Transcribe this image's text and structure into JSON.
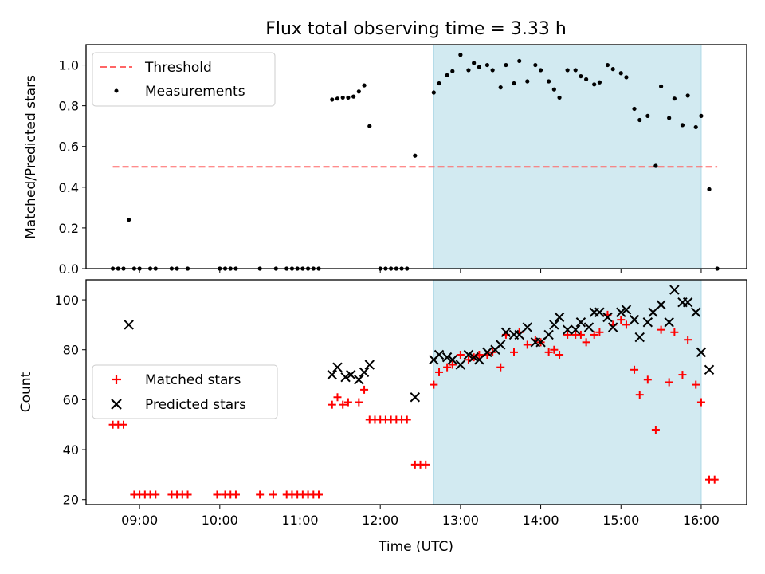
{
  "chart_data": [
    {
      "type": "scatter",
      "title": "Flux total observing time = 3.33 h",
      "xlabel": "",
      "ylabel": "Matched/Predicted stars",
      "ylim": [
        0,
        1.1
      ],
      "xlim": [
        "08:20",
        "16:34"
      ],
      "yticks": [
        0.0,
        0.2,
        0.4,
        0.6,
        0.8,
        1.0
      ],
      "ytick_labels": [
        "0.0",
        "0.2",
        "0.4",
        "0.6",
        "0.8",
        "1.0"
      ],
      "shaded_span": [
        "12:40",
        "16:00"
      ],
      "legend_position": "upper left",
      "threshold": {
        "name": "Threshold",
        "value": 0.5,
        "x_range": [
          "08:40",
          "16:12"
        ],
        "color": "#ff6666",
        "style": "dashed"
      },
      "series": [
        {
          "name": "Measurements",
          "color": "#000000",
          "marker": "dot",
          "points": [
            [
              "08:40",
              0.0
            ],
            [
              "08:44",
              0.0
            ],
            [
              "08:48",
              0.0
            ],
            [
              "08:52",
              0.24
            ],
            [
              "08:56",
              0.0
            ],
            [
              "09:00",
              0.0
            ],
            [
              "09:08",
              0.0
            ],
            [
              "09:12",
              0.0
            ],
            [
              "09:24",
              0.0
            ],
            [
              "09:28",
              0.0
            ],
            [
              "09:36",
              0.0
            ],
            [
              "10:00",
              0.0
            ],
            [
              "10:04",
              0.0
            ],
            [
              "10:08",
              0.0
            ],
            [
              "10:12",
              0.0
            ],
            [
              "10:30",
              0.0
            ],
            [
              "10:42",
              0.0
            ],
            [
              "10:50",
              0.0
            ],
            [
              "10:54",
              0.0
            ],
            [
              "10:58",
              0.0
            ],
            [
              "11:02",
              0.0
            ],
            [
              "11:06",
              0.0
            ],
            [
              "11:10",
              0.0
            ],
            [
              "11:14",
              0.0
            ],
            [
              "11:24",
              0.83
            ],
            [
              "11:28",
              0.835
            ],
            [
              "11:32",
              0.84
            ],
            [
              "11:36",
              0.84
            ],
            [
              "11:40",
              0.845
            ],
            [
              "11:44",
              0.87
            ],
            [
              "11:48",
              0.9
            ],
            [
              "11:52",
              0.7
            ],
            [
              "12:00",
              0.0
            ],
            [
              "12:04",
              0.0
            ],
            [
              "12:08",
              0.0
            ],
            [
              "12:12",
              0.0
            ],
            [
              "12:16",
              0.0
            ],
            [
              "12:20",
              0.0
            ],
            [
              "12:26",
              0.555
            ],
            [
              "12:40",
              0.865
            ],
            [
              "12:44",
              0.91
            ],
            [
              "12:50",
              0.95
            ],
            [
              "12:54",
              0.97
            ],
            [
              "13:00",
              1.05
            ],
            [
              "13:06",
              0.975
            ],
            [
              "13:10",
              1.01
            ],
            [
              "13:14",
              0.99
            ],
            [
              "13:20",
              1.0
            ],
            [
              "13:24",
              0.975
            ],
            [
              "13:30",
              0.89
            ],
            [
              "13:34",
              1.0
            ],
            [
              "13:40",
              0.91
            ],
            [
              "13:44",
              1.02
            ],
            [
              "13:50",
              0.92
            ],
            [
              "13:56",
              1.0
            ],
            [
              "14:00",
              0.975
            ],
            [
              "14:06",
              0.92
            ],
            [
              "14:10",
              0.88
            ],
            [
              "14:14",
              0.84
            ],
            [
              "14:20",
              0.975
            ],
            [
              "14:26",
              0.975
            ],
            [
              "14:30",
              0.945
            ],
            [
              "14:34",
              0.93
            ],
            [
              "14:40",
              0.905
            ],
            [
              "14:44",
              0.915
            ],
            [
              "14:50",
              1.0
            ],
            [
              "14:54",
              0.98
            ],
            [
              "15:00",
              0.96
            ],
            [
              "15:04",
              0.94
            ],
            [
              "15:10",
              0.785
            ],
            [
              "15:14",
              0.73
            ],
            [
              "15:20",
              0.75
            ],
            [
              "15:26",
              0.505
            ],
            [
              "15:30",
              0.895
            ],
            [
              "15:36",
              0.74
            ],
            [
              "15:40",
              0.835
            ],
            [
              "15:46",
              0.705
            ],
            [
              "15:50",
              0.85
            ],
            [
              "15:56",
              0.695
            ],
            [
              "16:00",
              0.75
            ],
            [
              "16:06",
              0.39
            ],
            [
              "16:12",
              0.0
            ]
          ]
        }
      ]
    },
    {
      "type": "scatter",
      "title": "",
      "xlabel": "Time (UTC)",
      "ylabel": "Count",
      "ylim": [
        18,
        108
      ],
      "xlim": [
        "08:20",
        "16:34"
      ],
      "yticks": [
        20,
        40,
        60,
        80,
        100
      ],
      "ytick_labels": [
        "20",
        "40",
        "60",
        "80",
        "100"
      ],
      "xticks": [
        "09:00",
        "10:00",
        "11:00",
        "12:00",
        "13:00",
        "14:00",
        "15:00",
        "16:00"
      ],
      "xtick_labels": [
        "09:00",
        "10:00",
        "11:00",
        "12:00",
        "13:00",
        "14:00",
        "15:00",
        "16:00"
      ],
      "shaded_span": [
        "12:40",
        "16:00"
      ],
      "legend_position": "center left",
      "series": [
        {
          "name": "Matched stars",
          "color": "#ff0000",
          "marker": "plus",
          "points": [
            [
              "08:40",
              50
            ],
            [
              "08:44",
              50
            ],
            [
              "08:48",
              50
            ],
            [
              "08:56",
              22
            ],
            [
              "09:00",
              22
            ],
            [
              "09:04",
              22
            ],
            [
              "09:08",
              22
            ],
            [
              "09:12",
              22
            ],
            [
              "09:24",
              22
            ],
            [
              "09:28",
              22
            ],
            [
              "09:32",
              22
            ],
            [
              "09:36",
              22
            ],
            [
              "09:58",
              22
            ],
            [
              "10:04",
              22
            ],
            [
              "10:08",
              22
            ],
            [
              "10:12",
              22
            ],
            [
              "10:30",
              22
            ],
            [
              "10:40",
              22
            ],
            [
              "10:50",
              22
            ],
            [
              "10:54",
              22
            ],
            [
              "10:58",
              22
            ],
            [
              "11:02",
              22
            ],
            [
              "11:06",
              22
            ],
            [
              "11:10",
              22
            ],
            [
              "11:14",
              22
            ],
            [
              "11:24",
              58
            ],
            [
              "11:28",
              61
            ],
            [
              "11:32",
              58
            ],
            [
              "11:36",
              59
            ],
            [
              "11:44",
              59
            ],
            [
              "11:48",
              64
            ],
            [
              "11:52",
              52
            ],
            [
              "11:56",
              52
            ],
            [
              "12:00",
              52
            ],
            [
              "12:04",
              52
            ],
            [
              "12:08",
              52
            ],
            [
              "12:12",
              52
            ],
            [
              "12:16",
              52
            ],
            [
              "12:20",
              52
            ],
            [
              "12:26",
              34
            ],
            [
              "12:30",
              34
            ],
            [
              "12:34",
              34
            ],
            [
              "12:40",
              66
            ],
            [
              "12:44",
              71
            ],
            [
              "12:50",
              73
            ],
            [
              "12:54",
              74
            ],
            [
              "13:00",
              78
            ],
            [
              "13:06",
              76
            ],
            [
              "13:10",
              77
            ],
            [
              "13:14",
              78
            ],
            [
              "13:20",
              78
            ],
            [
              "13:24",
              79
            ],
            [
              "13:30",
              73
            ],
            [
              "13:34",
              86
            ],
            [
              "13:40",
              79
            ],
            [
              "13:44",
              87
            ],
            [
              "13:50",
              82
            ],
            [
              "13:56",
              84
            ],
            [
              "14:00",
              83
            ],
            [
              "14:06",
              79
            ],
            [
              "14:10",
              80
            ],
            [
              "14:14",
              78
            ],
            [
              "14:20",
              86
            ],
            [
              "14:26",
              86
            ],
            [
              "14:30",
              86
            ],
            [
              "14:34",
              83
            ],
            [
              "14:40",
              86
            ],
            [
              "14:44",
              87
            ],
            [
              "14:50",
              94
            ],
            [
              "14:54",
              90
            ],
            [
              "15:00",
              92
            ],
            [
              "15:04",
              90
            ],
            [
              "15:10",
              72
            ],
            [
              "15:14",
              62
            ],
            [
              "15:20",
              68
            ],
            [
              "15:26",
              48
            ],
            [
              "15:30",
              88
            ],
            [
              "15:36",
              67
            ],
            [
              "15:40",
              87
            ],
            [
              "15:46",
              70
            ],
            [
              "15:50",
              84
            ],
            [
              "15:56",
              66
            ],
            [
              "16:00",
              59
            ],
            [
              "16:06",
              28
            ],
            [
              "16:10",
              28
            ]
          ]
        },
        {
          "name": "Predicted stars",
          "color": "#000000",
          "marker": "x",
          "points": [
            [
              "08:52",
              90
            ],
            [
              "11:24",
              70
            ],
            [
              "11:28",
              73
            ],
            [
              "11:34",
              69
            ],
            [
              "11:38",
              70
            ],
            [
              "11:44",
              68
            ],
            [
              "11:48",
              71
            ],
            [
              "11:52",
              74
            ],
            [
              "12:26",
              61
            ],
            [
              "12:40",
              76
            ],
            [
              "12:44",
              78
            ],
            [
              "12:50",
              77
            ],
            [
              "12:54",
              76
            ],
            [
              "13:00",
              74
            ],
            [
              "13:06",
              78
            ],
            [
              "13:10",
              77
            ],
            [
              "13:14",
              76
            ],
            [
              "13:20",
              79
            ],
            [
              "13:26",
              80
            ],
            [
              "13:30",
              82
            ],
            [
              "13:34",
              87
            ],
            [
              "13:40",
              86
            ],
            [
              "13:44",
              86
            ],
            [
              "13:50",
              89
            ],
            [
              "13:56",
              83
            ],
            [
              "14:00",
              83
            ],
            [
              "14:06",
              86
            ],
            [
              "14:10",
              90
            ],
            [
              "14:14",
              93
            ],
            [
              "14:20",
              88
            ],
            [
              "14:26",
              88
            ],
            [
              "14:30",
              91
            ],
            [
              "14:36",
              89
            ],
            [
              "14:40",
              95
            ],
            [
              "14:44",
              95
            ],
            [
              "14:50",
              93
            ],
            [
              "14:54",
              89
            ],
            [
              "15:00",
              95
            ],
            [
              "15:04",
              96
            ],
            [
              "15:10",
              92
            ],
            [
              "15:14",
              85
            ],
            [
              "15:20",
              91
            ],
            [
              "15:24",
              95
            ],
            [
              "15:30",
              98
            ],
            [
              "15:36",
              91
            ],
            [
              "15:40",
              104
            ],
            [
              "15:46",
              99
            ],
            [
              "15:50",
              99
            ],
            [
              "15:56",
              95
            ],
            [
              "16:00",
              79
            ],
            [
              "16:06",
              72
            ]
          ]
        }
      ]
    }
  ]
}
